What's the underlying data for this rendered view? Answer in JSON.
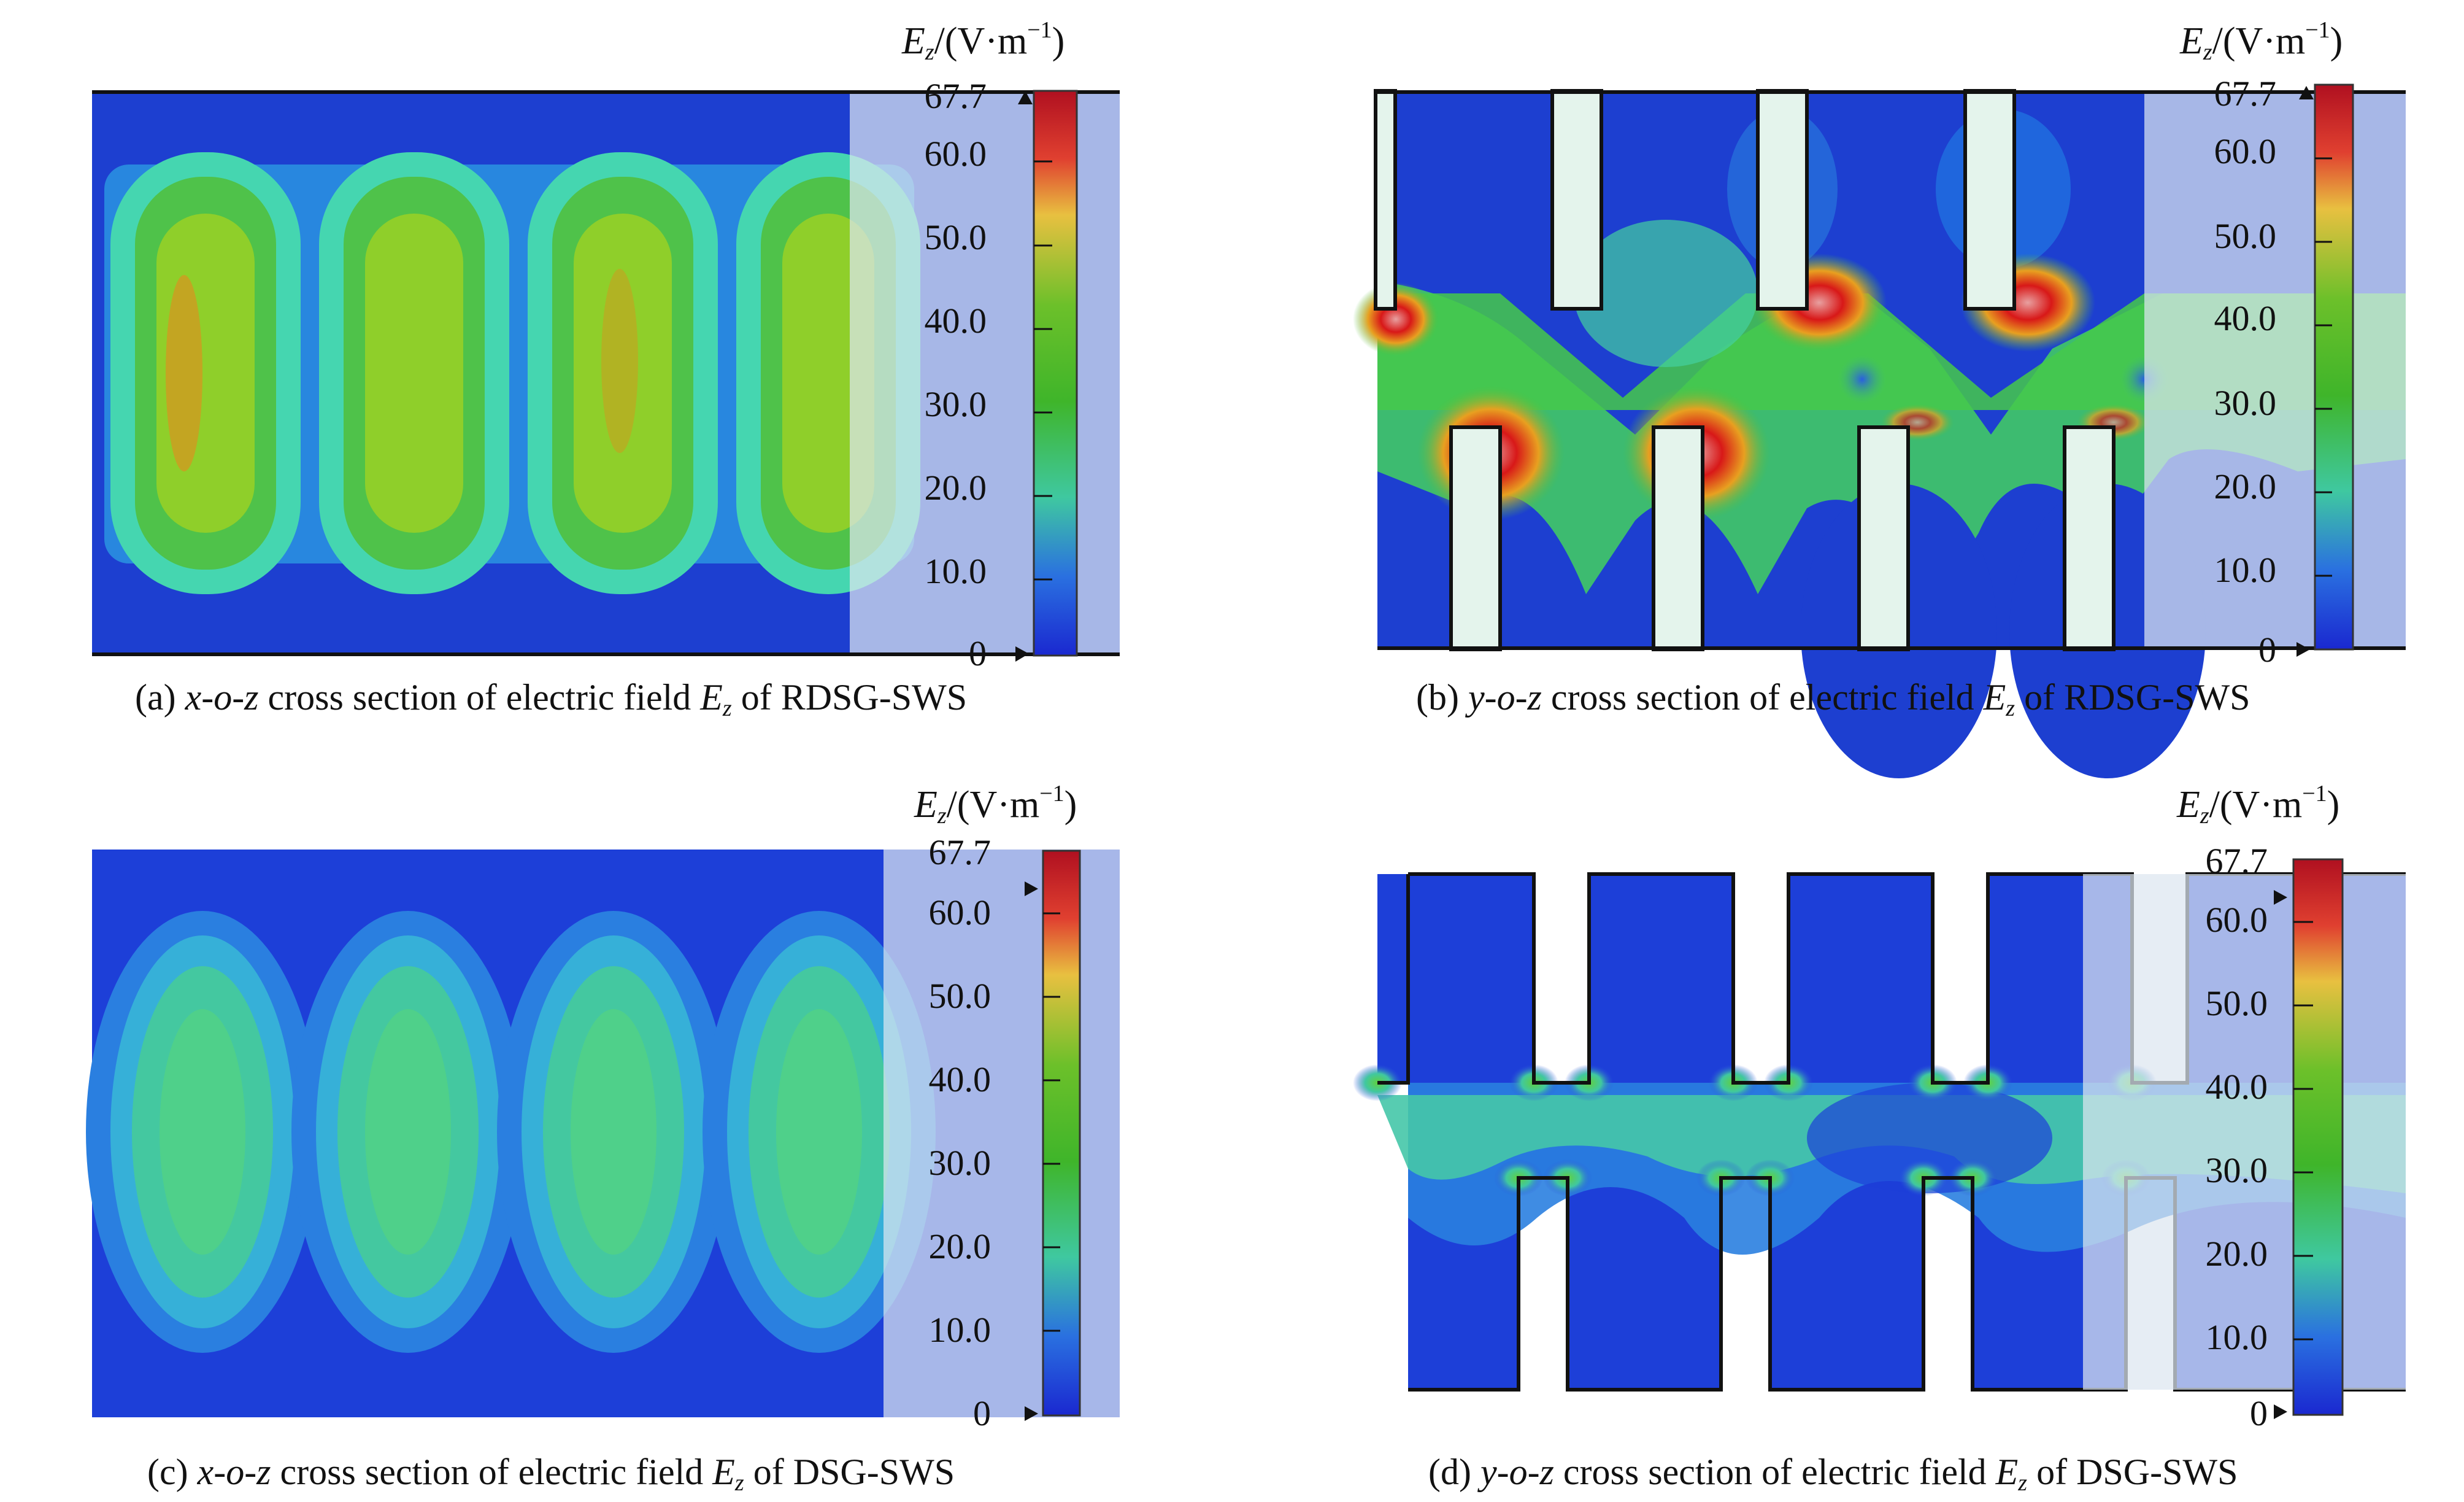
{
  "colorbar": {
    "unit_label": {
      "quantity": "E",
      "subscript": "z",
      "unit": "/(V·m",
      "exponent": "−1",
      "close": ")"
    },
    "ticks": [
      "67.7",
      "60.0",
      "50.0",
      "40.0",
      "30.0",
      "20.0",
      "10.0",
      "0"
    ],
    "colors": [
      "#c1121f",
      "#e8d46a",
      "#3fb52a",
      "#3fd29a",
      "#2e6fe0",
      "#1d2bd8"
    ]
  },
  "panels": [
    {
      "id": "a",
      "prefix": "(a) ",
      "view": "x-o-z",
      "middle": " cross section of electric field ",
      "field": "E",
      "field_sub": "z",
      "suffix": " of RDSG-SWS"
    },
    {
      "id": "b",
      "prefix": "(b) ",
      "view": "y-o-z",
      "middle": " cross section of electric field ",
      "field": "E",
      "field_sub": "z",
      "suffix": " of RDSG-SWS"
    },
    {
      "id": "c",
      "prefix": "(c) ",
      "view": "x-o-z",
      "middle": " cross section of electric field ",
      "field": "E",
      "field_sub": "z",
      "suffix": " of DSG-SWS"
    },
    {
      "id": "d",
      "prefix": "(d) ",
      "view": "y-o-z",
      "middle": " cross section of electric field ",
      "field": "E",
      "field_sub": "z",
      "suffix": " of DSG-SWS"
    }
  ]
}
